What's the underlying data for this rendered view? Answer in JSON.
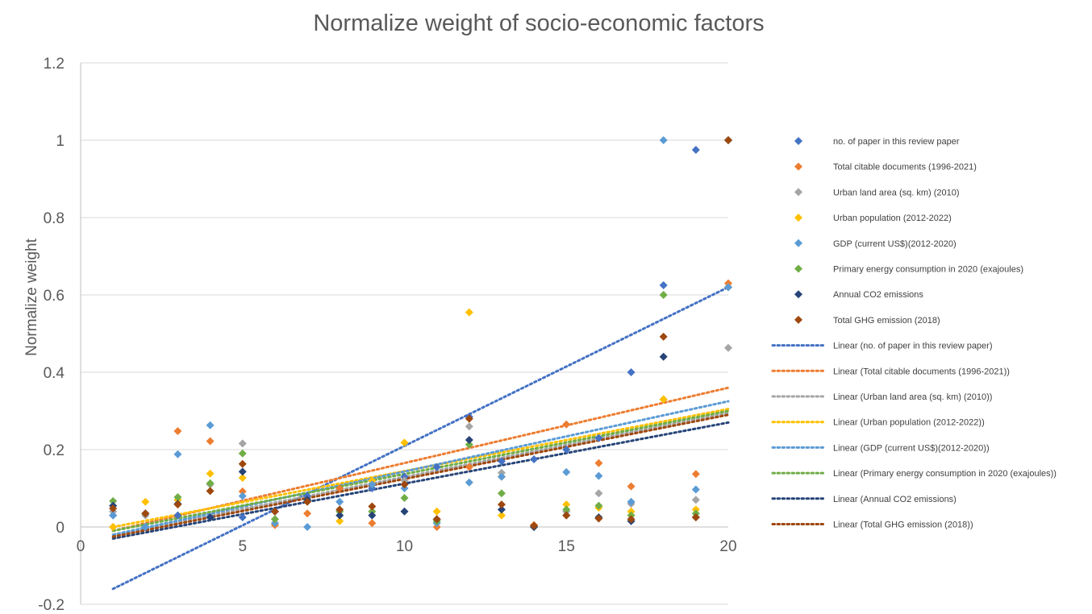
{
  "chart_data": {
    "type": "scatter",
    "title": "Normalize weight of socio-economic factors",
    "xlabel": "",
    "ylabel": "Normalize weight",
    "xlim": [
      0,
      20
    ],
    "ylim": [
      -0.2,
      1.2
    ],
    "x_ticks": [
      0,
      5,
      10,
      15,
      20
    ],
    "y_ticks": [
      -0.2,
      0,
      0.2,
      0.4,
      0.6,
      0.8,
      1,
      1.2
    ],
    "x_tick_labels": [
      "0",
      "5",
      "10",
      "15",
      "20"
    ],
    "y_tick_labels": [
      "-0.2",
      "0",
      "0.2",
      "0.4",
      "0.6",
      "0.8",
      "1",
      "1.2"
    ],
    "grid": "horizontal",
    "legend_position": "right",
    "x": [
      1,
      2,
      3,
      4,
      5,
      6,
      7,
      8,
      9,
      10,
      11,
      12,
      13,
      14,
      15,
      16,
      17,
      18,
      19,
      20
    ],
    "series": [
      {
        "name": "no. of paper in this review paper",
        "color": "#4472C4",
        "values": [
          0.03,
          0.0,
          0.03,
          0.025,
          0.025,
          0.04,
          0.08,
          0.1,
          0.1,
          0.13,
          0.155,
          0.285,
          0.17,
          0.175,
          0.2,
          0.23,
          0.4,
          0.625,
          0.975,
          0.62
        ]
      },
      {
        "name": "Total citable documents (1996-2021)",
        "color": "#ED7D31",
        "values": [
          0.0,
          0.035,
          0.248,
          0.222,
          0.092,
          0.005,
          0.035,
          0.1,
          0.01,
          0.12,
          0.0,
          0.155,
          0.13,
          0.005,
          0.265,
          0.165,
          0.105,
          0.33,
          0.137,
          0.63
        ]
      },
      {
        "name": "Urban land area (sq. km) (2010)",
        "color": "#A5A5A5",
        "values": [
          0.04,
          0.03,
          0.07,
          0.11,
          0.216,
          0.02,
          0.07,
          0.065,
          0.11,
          0.12,
          0.02,
          0.26,
          0.14,
          0.0,
          0.04,
          0.087,
          0.06,
          0.33,
          0.07,
          0.463
        ]
      },
      {
        "name": "Urban population (2012-2022)",
        "color": "#FFC000",
        "values": [
          0.0,
          0.065,
          0.07,
          0.138,
          0.127,
          0.01,
          0.07,
          0.015,
          0.12,
          0.218,
          0.04,
          0.555,
          0.03,
          0.0,
          0.058,
          0.05,
          0.04,
          0.33,
          0.045,
          0.62
        ]
      },
      {
        "name": "GDP (current US$)(2012-2020)",
        "color": "#5B9BD5",
        "values": [
          0.03,
          0.0,
          0.188,
          0.263,
          0.08,
          0.01,
          0.0,
          0.065,
          0.11,
          0.1,
          0.01,
          0.115,
          0.13,
          0.0,
          0.142,
          0.132,
          0.065,
          1.0,
          0.097,
          0.62
        ]
      },
      {
        "name": "Primary energy consumption in 2020 (exajoules)",
        "color": "#70AD47",
        "values": [
          0.067,
          0.035,
          0.077,
          0.113,
          0.19,
          0.02,
          0.07,
          0.04,
          0.04,
          0.075,
          0.015,
          0.213,
          0.087,
          0.0,
          0.045,
          0.055,
          0.03,
          0.6,
          0.035,
          1.0
        ]
      },
      {
        "name": "Annual CO2 emissions",
        "color": "#264478",
        "values": [
          0.055,
          0.035,
          0.06,
          0.025,
          0.143,
          0.04,
          0.07,
          0.03,
          0.03,
          0.04,
          0.02,
          0.225,
          0.045,
          0.0,
          0.03,
          0.025,
          0.015,
          0.44,
          0.025,
          1.0
        ]
      },
      {
        "name": "Total GHG emission (2018)",
        "color": "#9E480E",
        "values": [
          0.048,
          0.035,
          0.058,
          0.093,
          0.163,
          0.04,
          0.065,
          0.045,
          0.053,
          0.11,
          0.02,
          0.28,
          0.058,
          0.003,
          0.03,
          0.022,
          0.02,
          0.492,
          0.025,
          1.0
        ]
      }
    ],
    "trendlines": [
      {
        "name": "Linear (no. of paper in this review paper)",
        "color": "#4472C4",
        "x_range": [
          1,
          20
        ],
        "y_range": [
          -0.16,
          0.62
        ]
      },
      {
        "name": "Linear (Total citable documents (1996-2021))",
        "color": "#ED7D31",
        "x_range": [
          1,
          20
        ],
        "y_range": [
          -0.01,
          0.36
        ]
      },
      {
        "name": "Linear (Urban land area (sq. km) (2010))",
        "color": "#A5A5A5",
        "x_range": [
          1,
          20
        ],
        "y_range": [
          -0.02,
          0.295
        ]
      },
      {
        "name": "Linear (Urban population (2012-2022))",
        "color": "#FFC000",
        "x_range": [
          1,
          20
        ],
        "y_range": [
          0.0,
          0.305
        ]
      },
      {
        "name": "Linear (GDP (current US$)(2012-2020))",
        "color": "#5B9BD5",
        "x_range": [
          1,
          20
        ],
        "y_range": [
          -0.02,
          0.325
        ]
      },
      {
        "name": "Linear (Primary energy consumption in 2020 (exajoules))",
        "color": "#70AD47",
        "x_range": [
          1,
          20
        ],
        "y_range": [
          -0.01,
          0.3
        ]
      },
      {
        "name": "Linear (Annual CO2 emissions)",
        "color": "#264478",
        "x_range": [
          1,
          20
        ],
        "y_range": [
          -0.03,
          0.27
        ]
      },
      {
        "name": "Linear (Total GHG emission (2018))",
        "color": "#9E480E",
        "x_range": [
          1,
          20
        ],
        "y_range": [
          -0.025,
          0.29
        ]
      }
    ]
  }
}
